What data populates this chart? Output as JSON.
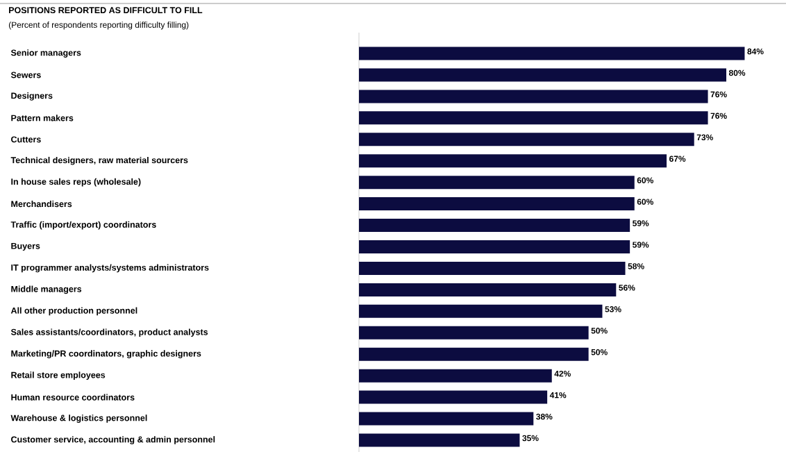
{
  "chart_data": {
    "type": "bar",
    "orientation": "horizontal",
    "title": "POSITIONS REPORTED AS DIFFICULT TO FILL",
    "subtitle": "(Percent of respondents reporting difficulty filling)",
    "categories": [
      "Senior managers",
      "Sewers",
      "Designers",
      "Pattern makers",
      "Cutters",
      "Technical designers, raw material sourcers",
      "In house sales reps (wholesale)",
      "Merchandisers",
      "Traffic (import/export) coordinators",
      "Buyers",
      "IT programmer analysts/systems administrators",
      "Middle managers",
      "All other production personnel",
      "Sales assistants/coordinators, product analysts",
      "Marketing/PR coordinators, graphic designers",
      "Retail store employees",
      "Human resource coordinators",
      "Warehouse & logistics personnel",
      "Customer service, accounting & admin personnel"
    ],
    "values": [
      84,
      80,
      76,
      76,
      73,
      67,
      60,
      60,
      59,
      59,
      58,
      56,
      53,
      50,
      50,
      42,
      41,
      38,
      35
    ],
    "value_labels": [
      "84%",
      "80%",
      "76%",
      "76%",
      "73%",
      "67%",
      "60%",
      "60%",
      "59%",
      "59%",
      "58%",
      "56%",
      "53%",
      "50%",
      "50%",
      "42%",
      "41%",
      "38%",
      "35%"
    ],
    "color": "#0c0c40"
  }
}
